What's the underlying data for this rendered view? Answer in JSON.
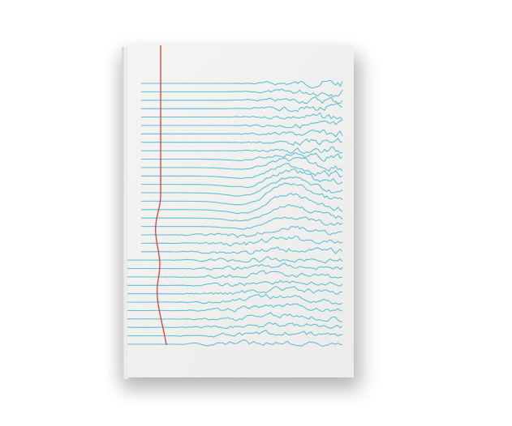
{
  "image": {
    "subject": "notebook-cover-mockup",
    "colors": {
      "background": "#ffffff",
      "cover": "#f4f4f3",
      "ruled_line": "#5bbfd2",
      "margin_line": "#d9413a",
      "shadow": "#000000"
    }
  },
  "artwork": {
    "ruled_line_count": 32,
    "wave_style": "joy-division-ridgeline"
  }
}
